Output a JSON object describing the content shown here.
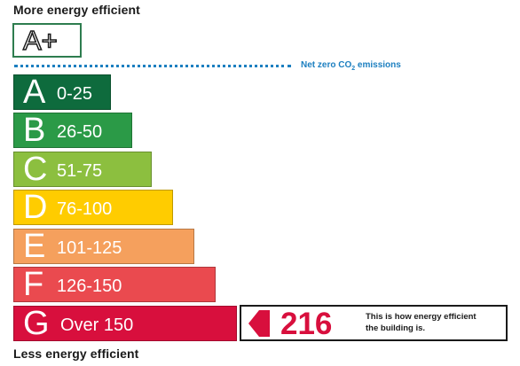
{
  "headings": {
    "top": "More energy efficient",
    "bottom": "Less energy efficient"
  },
  "aplus": {
    "label": "A+",
    "color": "#2e7d4f"
  },
  "net_zero": {
    "text_main": "Net zero CO",
    "text_sub": "2",
    "text_end": " emissions",
    "color": "#1c7fc0"
  },
  "bands": [
    {
      "letter": "A",
      "range": "0-25",
      "color": "#0e6b3d"
    },
    {
      "letter": "B",
      "range": "26-50",
      "color": "#2b9a47"
    },
    {
      "letter": "C",
      "range": "51-75",
      "color": "#8cbf3f"
    },
    {
      "letter": "D",
      "range": "76-100",
      "color": "#ffcc00"
    },
    {
      "letter": "E",
      "range": "101-125",
      "color": "#f5a05d"
    },
    {
      "letter": "F",
      "range": "126-150",
      "color": "#ea4a4f"
    },
    {
      "letter": "G",
      "range": "Over 150",
      "color": "#d80f3d"
    }
  ],
  "rating": {
    "value": "216",
    "band": "G",
    "arrow_icon": "left-pointer-arrow-icon",
    "color": "#d80f3d",
    "caption_line1": "This is how energy efficient",
    "caption_line2": "the building is."
  }
}
